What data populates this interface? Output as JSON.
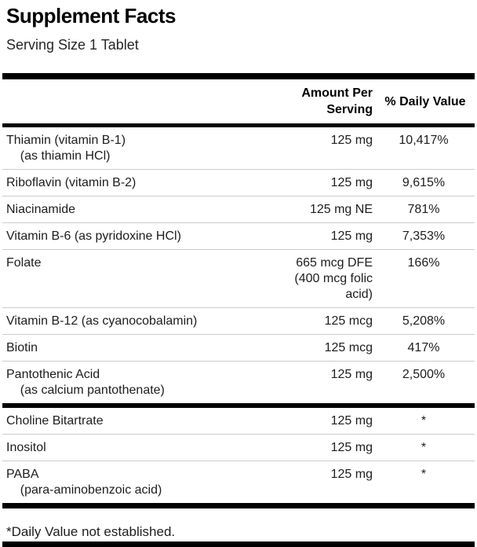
{
  "label": {
    "title": "Supplement Facts",
    "serving_size": "Serving Size 1 Tablet",
    "columns": {
      "amount": "Amount Per Serving",
      "daily_value": "% Daily Value"
    },
    "sections": [
      {
        "rows": [
          {
            "name": "Thiamin (vitamin B-1)\n    (as thiamin HCl)",
            "amount": "125 mg",
            "dv": "10,417%"
          },
          {
            "name": "Riboflavin (vitamin B-2)",
            "amount": "125 mg",
            "dv": "9,615%"
          },
          {
            "name": "Niacinamide",
            "amount": "125 mg NE",
            "dv": "781%"
          },
          {
            "name": "Vitamin B-6 (as pyridoxine HCl)",
            "amount": "125 mg",
            "dv": "7,353%"
          },
          {
            "name": "Folate",
            "amount": "665 mcg DFE\n(400 mcg folic\nacid)",
            "dv": "166%"
          },
          {
            "name": "Vitamin B-12 (as cyanocobalamin)",
            "amount": "125 mcg",
            "dv": "5,208%"
          },
          {
            "name": "Biotin",
            "amount": "125 mcg",
            "dv": "417%"
          },
          {
            "name": "Pantothenic Acid\n    (as calcium pantothenate)",
            "amount": "125 mg",
            "dv": "2,500%"
          }
        ]
      },
      {
        "rows": [
          {
            "name": "Choline Bitartrate",
            "amount": "125 mg",
            "dv": "*"
          },
          {
            "name": "Inositol",
            "amount": "125 mg",
            "dv": "*"
          },
          {
            "name": "PABA\n    (para-aminobenzoic acid)",
            "amount": "125 mg",
            "dv": "*"
          }
        ]
      }
    ],
    "footnote": "*Daily Value not established."
  },
  "colors": {
    "background": "#ffffff",
    "text": "#1d1d1d",
    "heavy_rule": "#000000",
    "row_separator": "#cccccc"
  }
}
